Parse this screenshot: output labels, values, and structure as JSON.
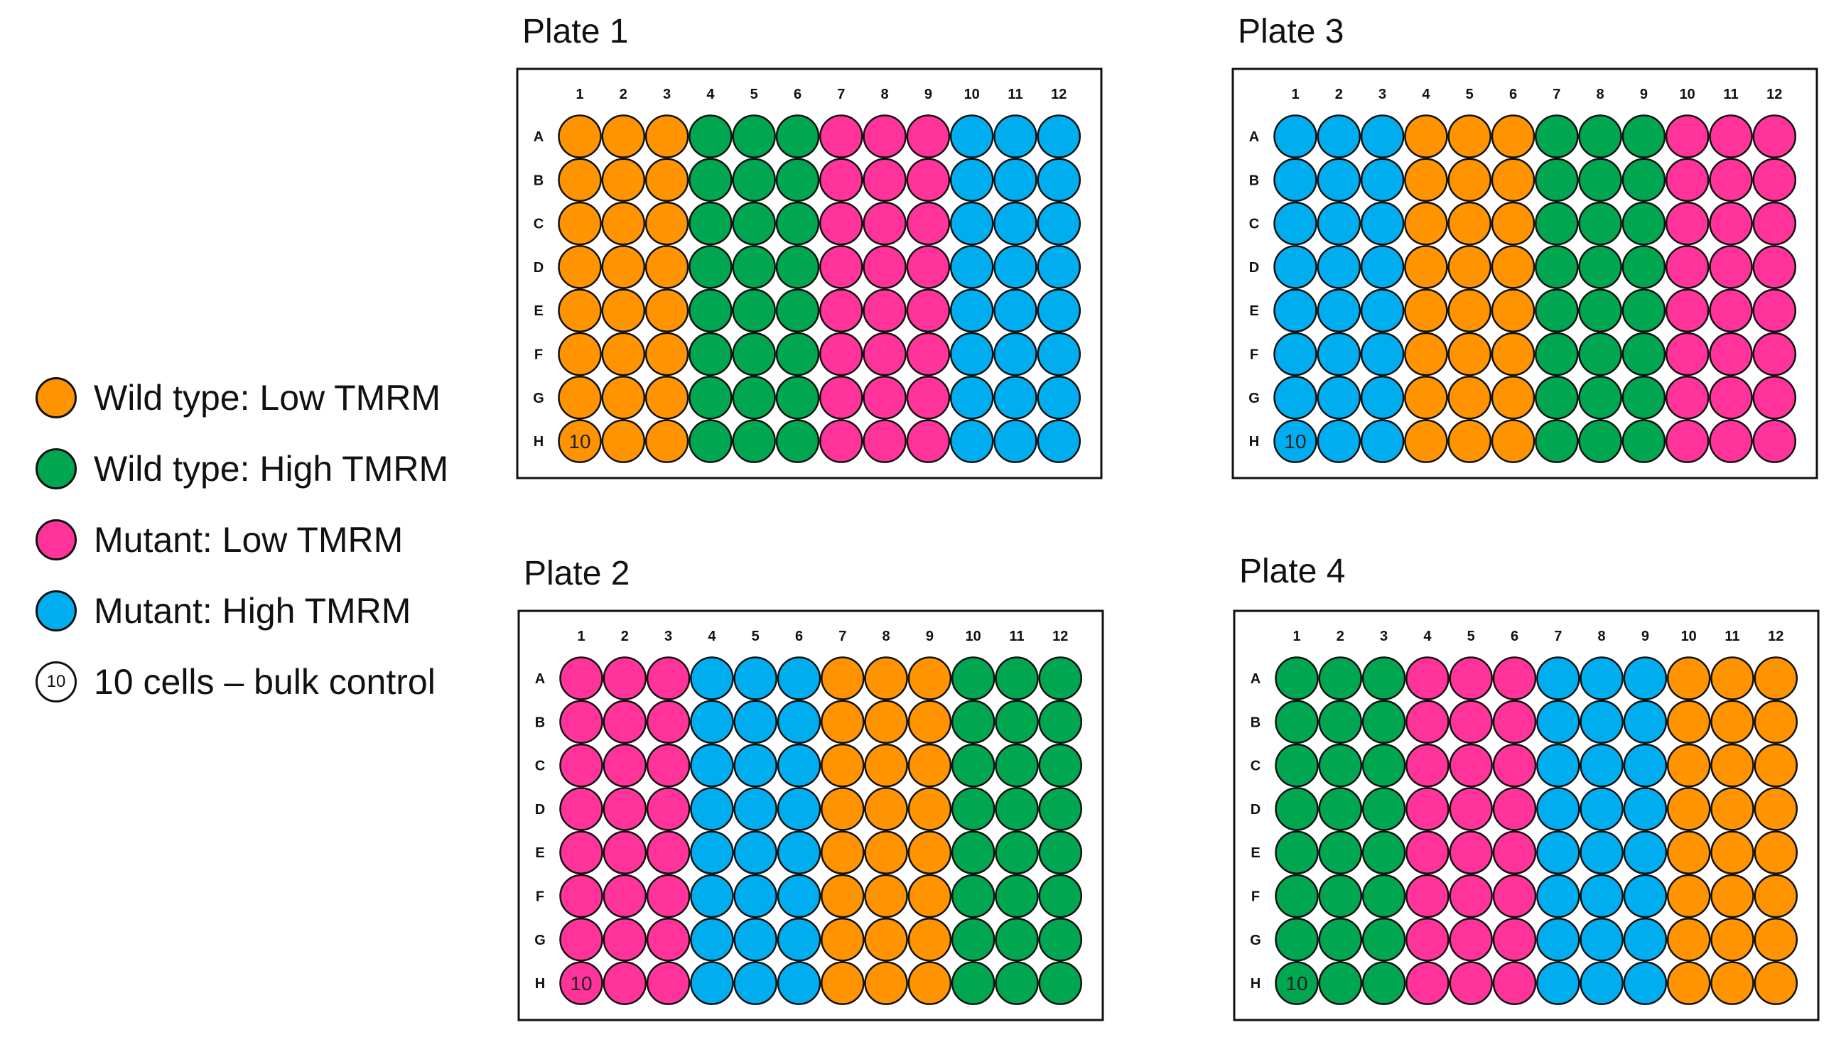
{
  "colors": {
    "wt_low": "#FF9300",
    "wt_high": "#00A650",
    "mut_low": "#FF3399",
    "mut_high": "#00AEEF"
  },
  "legend": [
    {
      "key": "wt_low",
      "label": "Wild type: Low TMRM"
    },
    {
      "key": "wt_high",
      "label": "Wild type: High TMRM"
    },
    {
      "key": "mut_low",
      "label": "Mutant: Low TMRM"
    },
    {
      "key": "mut_high",
      "label": "Mutant: High TMRM"
    },
    {
      "key": "control",
      "label": "10 cells – bulk control",
      "marker": "10"
    }
  ],
  "columns": [
    "1",
    "2",
    "3",
    "4",
    "5",
    "6",
    "7",
    "8",
    "9",
    "10",
    "11",
    "12"
  ],
  "rows": [
    "A",
    "B",
    "C",
    "D",
    "E",
    "F",
    "G",
    "H"
  ],
  "control_label": "10",
  "control_well": "H1",
  "plates": [
    {
      "title": "Plate 1",
      "groups": [
        "wt_low",
        "wt_high",
        "mut_low",
        "mut_high"
      ]
    },
    {
      "title": "Plate 3",
      "groups": [
        "mut_high",
        "wt_low",
        "wt_high",
        "mut_low"
      ]
    },
    {
      "title": "Plate 2",
      "groups": [
        "mut_low",
        "mut_high",
        "wt_low",
        "wt_high"
      ]
    },
    {
      "title": "Plate 4",
      "groups": [
        "wt_high",
        "mut_low",
        "mut_high",
        "wt_low"
      ]
    }
  ]
}
